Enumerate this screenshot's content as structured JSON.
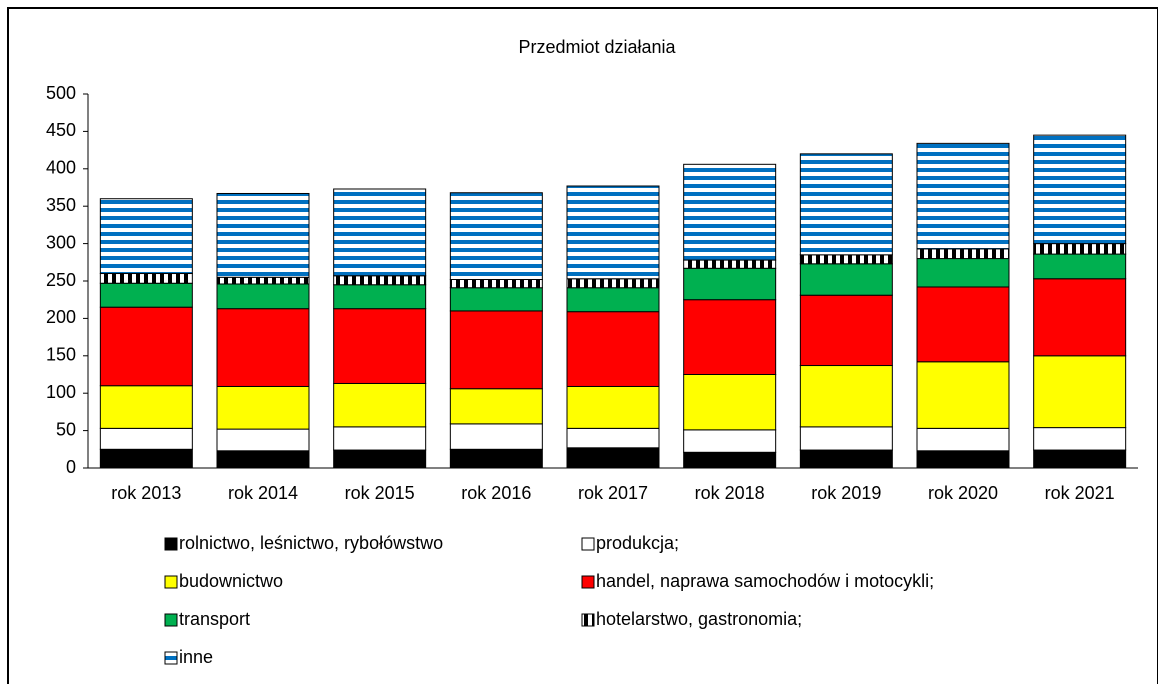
{
  "chart_data": {
    "type": "stacked-bar",
    "title": "Przedmiot  działania",
    "categories": [
      "rok 2013",
      "rok 2014",
      "rok 2015",
      "rok 2016",
      "rok 2017",
      "rok 2018",
      "rok 2019",
      "rok 2020",
      "rok 2021"
    ],
    "series": [
      {
        "name": "rolnictwo, leśnictwo, rybołówstwo",
        "color": "#000000",
        "values": [
          25,
          23,
          24,
          25,
          27,
          21,
          24,
          23,
          24
        ]
      },
      {
        "name": "produkcja;",
        "color": "#ffffff",
        "values": [
          28,
          29,
          31,
          34,
          26,
          30,
          31,
          30,
          30
        ]
      },
      {
        "name": "budownictwo",
        "color": "#ffff00",
        "values": [
          57,
          57,
          58,
          47,
          56,
          74,
          82,
          89,
          96
        ]
      },
      {
        "name": "handel, naprawa samochodów i motocykli;",
        "color": "#ff0000",
        "values": [
          105,
          104,
          100,
          104,
          100,
          100,
          94,
          100,
          103
        ]
      },
      {
        "name": "transport",
        "color": "#00b050",
        "values": [
          32,
          33,
          32,
          31,
          32,
          42,
          42,
          38,
          33
        ]
      },
      {
        "name": "hotelarstwo, gastronomia;",
        "color": "#000000",
        "pattern": "vertical-stripes",
        "values": [
          13,
          9,
          12,
          11,
          12,
          11,
          12,
          13,
          14
        ]
      },
      {
        "name": "inne",
        "color": "#0070c0",
        "pattern": "horizontal-stripes",
        "values": [
          100,
          112,
          116,
          116,
          124,
          128,
          135,
          141,
          145
        ]
      }
    ],
    "ylim": [
      0,
      500
    ],
    "yticks": [
      0,
      50,
      100,
      150,
      200,
      250,
      300,
      350,
      400,
      450,
      500
    ],
    "grid": false
  }
}
